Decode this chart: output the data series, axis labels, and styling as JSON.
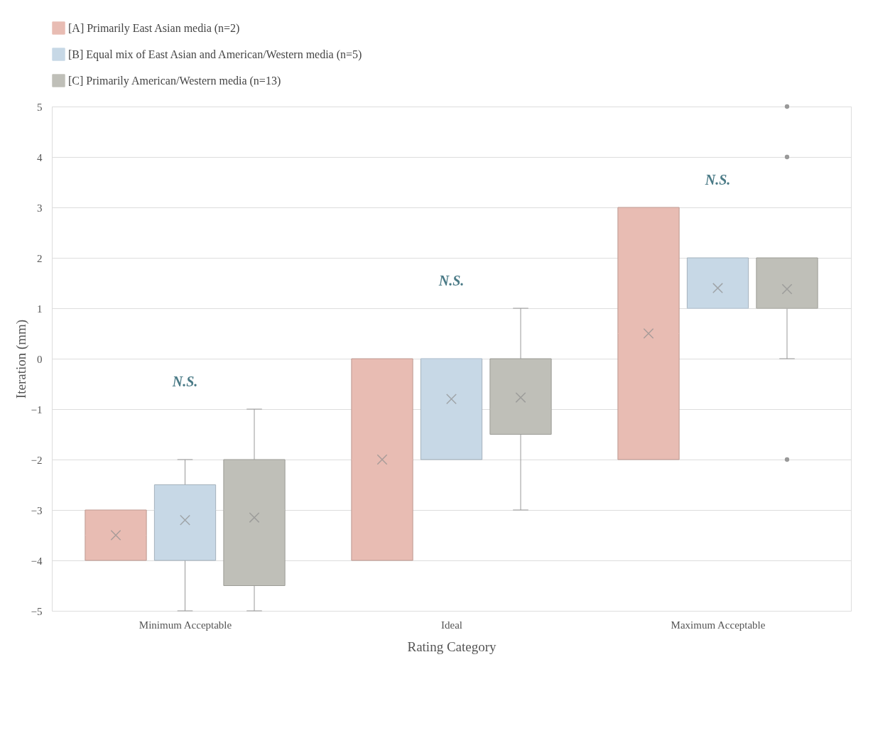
{
  "chart_data": {
    "type": "box",
    "xlabel": "Rating Category",
    "ylabel": "Iteration (mm)",
    "categories": [
      "Minimum Acceptable",
      "Ideal",
      "Maximum Acceptable"
    ],
    "ylim": [
      -5,
      5
    ],
    "yticks": [
      -5,
      -4,
      -3,
      -2,
      -1,
      0,
      1,
      2,
      3,
      4,
      5
    ],
    "grid": "y",
    "legend": "top",
    "series": [
      {
        "name": "[A] Primarily East Asian media (n=2)",
        "color": "#e8bcb3",
        "boxes": [
          {
            "low": -4,
            "q1": -4,
            "median": -3.5,
            "q3": -3,
            "high": -3,
            "mean": -3.5
          },
          {
            "low": -4,
            "q1": -4,
            "median": -2,
            "q3": 0,
            "high": 0,
            "mean": -2
          },
          {
            "low": -2,
            "q1": -2,
            "median": 0.5,
            "q3": 3,
            "high": 3,
            "mean": 0.5
          }
        ]
      },
      {
        "name": "[B] Equal mix of East Asian and American/Western media (n=5)",
        "color": "#c7d8e6",
        "boxes": [
          {
            "low": -5,
            "q1": -4,
            "median": -3,
            "q3": -2.5,
            "high": -2,
            "mean": -3.2
          },
          {
            "low": -2,
            "q1": -2,
            "median": 0,
            "q3": 0,
            "high": 0,
            "mean": -0.8
          },
          {
            "low": 1,
            "q1": 1,
            "median": 1,
            "q3": 2,
            "high": 2,
            "mean": 1.4
          }
        ]
      },
      {
        "name": "[C] Primarily American/Western media (n=13)",
        "color": "#bfbfb8",
        "boxes": [
          {
            "low": -5,
            "q1": -4.5,
            "median": -3,
            "q3": -2,
            "high": -1,
            "mean": -3.15
          },
          {
            "low": -3,
            "q1": -1.5,
            "median": -1,
            "q3": 0,
            "high": 1,
            "mean": -0.77
          },
          {
            "low": 0,
            "q1": 1,
            "median": 1,
            "q3": 2,
            "high": 2,
            "mean": 1.38,
            "outliers": [
              5,
              4,
              -2
            ]
          }
        ]
      }
    ],
    "annotations": [
      "N.S.",
      "N.S.",
      "N.S."
    ]
  }
}
